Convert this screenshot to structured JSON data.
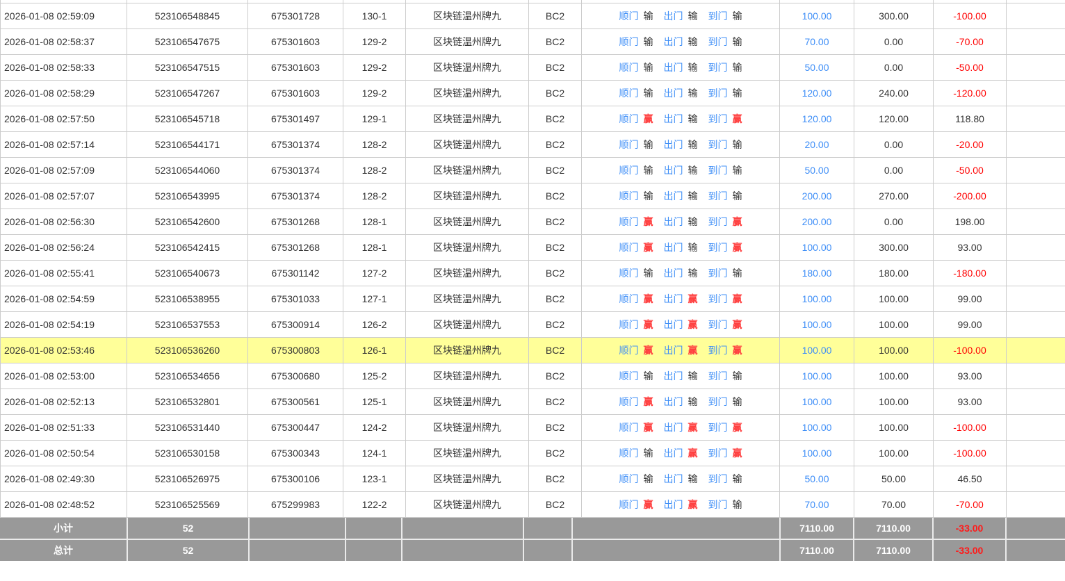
{
  "table": {
    "gate_labels": [
      "顺门",
      "出门",
      "到门"
    ],
    "win_char": "赢",
    "lose_char": "输",
    "colors": {
      "link_blue": "#3e8ef7",
      "win_red": "#ff4040",
      "loss_red": "#ff0000",
      "highlight_yellow": "#ffff99",
      "footer_gray": "#999999",
      "border_gray": "#cccccc"
    },
    "rows": [
      {
        "time": "2026-01-08 02:59:09",
        "bet_id": "523106548845",
        "draw_id": "675301728",
        "round": "130-1",
        "game": "区块链温州牌九",
        "table_code": "BC2",
        "outcomes": [
          "输",
          "输",
          "输"
        ],
        "bet_amount": "100.00",
        "valid_amount": "300.00",
        "win_loss": "-100.00",
        "highlighted": false
      },
      {
        "time": "2026-01-08 02:58:37",
        "bet_id": "523106547675",
        "draw_id": "675301603",
        "round": "129-2",
        "game": "区块链温州牌九",
        "table_code": "BC2",
        "outcomes": [
          "输",
          "输",
          "输"
        ],
        "bet_amount": "70.00",
        "valid_amount": "0.00",
        "win_loss": "-70.00",
        "highlighted": false
      },
      {
        "time": "2026-01-08 02:58:33",
        "bet_id": "523106547515",
        "draw_id": "675301603",
        "round": "129-2",
        "game": "区块链温州牌九",
        "table_code": "BC2",
        "outcomes": [
          "输",
          "输",
          "输"
        ],
        "bet_amount": "50.00",
        "valid_amount": "0.00",
        "win_loss": "-50.00",
        "highlighted": false
      },
      {
        "time": "2026-01-08 02:58:29",
        "bet_id": "523106547267",
        "draw_id": "675301603",
        "round": "129-2",
        "game": "区块链温州牌九",
        "table_code": "BC2",
        "outcomes": [
          "输",
          "输",
          "输"
        ],
        "bet_amount": "120.00",
        "valid_amount": "240.00",
        "win_loss": "-120.00",
        "highlighted": false
      },
      {
        "time": "2026-01-08 02:57:50",
        "bet_id": "523106545718",
        "draw_id": "675301497",
        "round": "129-1",
        "game": "区块链温州牌九",
        "table_code": "BC2",
        "outcomes": [
          "赢",
          "输",
          "赢"
        ],
        "bet_amount": "120.00",
        "valid_amount": "120.00",
        "win_loss": "118.80",
        "highlighted": false
      },
      {
        "time": "2026-01-08 02:57:14",
        "bet_id": "523106544171",
        "draw_id": "675301374",
        "round": "128-2",
        "game": "区块链温州牌九",
        "table_code": "BC2",
        "outcomes": [
          "输",
          "输",
          "输"
        ],
        "bet_amount": "20.00",
        "valid_amount": "0.00",
        "win_loss": "-20.00",
        "highlighted": false
      },
      {
        "time": "2026-01-08 02:57:09",
        "bet_id": "523106544060",
        "draw_id": "675301374",
        "round": "128-2",
        "game": "区块链温州牌九",
        "table_code": "BC2",
        "outcomes": [
          "输",
          "输",
          "输"
        ],
        "bet_amount": "50.00",
        "valid_amount": "0.00",
        "win_loss": "-50.00",
        "highlighted": false
      },
      {
        "time": "2026-01-08 02:57:07",
        "bet_id": "523106543995",
        "draw_id": "675301374",
        "round": "128-2",
        "game": "区块链温州牌九",
        "table_code": "BC2",
        "outcomes": [
          "输",
          "输",
          "输"
        ],
        "bet_amount": "200.00",
        "valid_amount": "270.00",
        "win_loss": "-200.00",
        "highlighted": false
      },
      {
        "time": "2026-01-08 02:56:30",
        "bet_id": "523106542600",
        "draw_id": "675301268",
        "round": "128-1",
        "game": "区块链温州牌九",
        "table_code": "BC2",
        "outcomes": [
          "赢",
          "输",
          "赢"
        ],
        "bet_amount": "200.00",
        "valid_amount": "0.00",
        "win_loss": "198.00",
        "highlighted": false
      },
      {
        "time": "2026-01-08 02:56:24",
        "bet_id": "523106542415",
        "draw_id": "675301268",
        "round": "128-1",
        "game": "区块链温州牌九",
        "table_code": "BC2",
        "outcomes": [
          "赢",
          "输",
          "赢"
        ],
        "bet_amount": "100.00",
        "valid_amount": "300.00",
        "win_loss": "93.00",
        "highlighted": false
      },
      {
        "time": "2026-01-08 02:55:41",
        "bet_id": "523106540673",
        "draw_id": "675301142",
        "round": "127-2",
        "game": "区块链温州牌九",
        "table_code": "BC2",
        "outcomes": [
          "输",
          "输",
          "输"
        ],
        "bet_amount": "180.00",
        "valid_amount": "180.00",
        "win_loss": "-180.00",
        "highlighted": false
      },
      {
        "time": "2026-01-08 02:54:59",
        "bet_id": "523106538955",
        "draw_id": "675301033",
        "round": "127-1",
        "game": "区块链温州牌九",
        "table_code": "BC2",
        "outcomes": [
          "赢",
          "赢",
          "赢"
        ],
        "bet_amount": "100.00",
        "valid_amount": "100.00",
        "win_loss": "99.00",
        "highlighted": false
      },
      {
        "time": "2026-01-08 02:54:19",
        "bet_id": "523106537553",
        "draw_id": "675300914",
        "round": "126-2",
        "game": "区块链温州牌九",
        "table_code": "BC2",
        "outcomes": [
          "赢",
          "赢",
          "赢"
        ],
        "bet_amount": "100.00",
        "valid_amount": "100.00",
        "win_loss": "99.00",
        "highlighted": false
      },
      {
        "time": "2026-01-08 02:53:46",
        "bet_id": "523106536260",
        "draw_id": "675300803",
        "round": "126-1",
        "game": "区块链温州牌九",
        "table_code": "BC2",
        "outcomes": [
          "赢",
          "赢",
          "赢"
        ],
        "bet_amount": "100.00",
        "valid_amount": "100.00",
        "win_loss": "-100.00",
        "highlighted": true
      },
      {
        "time": "2026-01-08 02:53:00",
        "bet_id": "523106534656",
        "draw_id": "675300680",
        "round": "125-2",
        "game": "区块链温州牌九",
        "table_code": "BC2",
        "outcomes": [
          "输",
          "输",
          "输"
        ],
        "bet_amount": "100.00",
        "valid_amount": "100.00",
        "win_loss": "93.00",
        "highlighted": false
      },
      {
        "time": "2026-01-08 02:52:13",
        "bet_id": "523106532801",
        "draw_id": "675300561",
        "round": "125-1",
        "game": "区块链温州牌九",
        "table_code": "BC2",
        "outcomes": [
          "赢",
          "输",
          "输"
        ],
        "bet_amount": "100.00",
        "valid_amount": "100.00",
        "win_loss": "93.00",
        "highlighted": false
      },
      {
        "time": "2026-01-08 02:51:33",
        "bet_id": "523106531440",
        "draw_id": "675300447",
        "round": "124-2",
        "game": "区块链温州牌九",
        "table_code": "BC2",
        "outcomes": [
          "赢",
          "赢",
          "赢"
        ],
        "bet_amount": "100.00",
        "valid_amount": "100.00",
        "win_loss": "-100.00",
        "highlighted": false
      },
      {
        "time": "2026-01-08 02:50:54",
        "bet_id": "523106530158",
        "draw_id": "675300343",
        "round": "124-1",
        "game": "区块链温州牌九",
        "table_code": "BC2",
        "outcomes": [
          "输",
          "赢",
          "赢"
        ],
        "bet_amount": "100.00",
        "valid_amount": "100.00",
        "win_loss": "-100.00",
        "highlighted": false
      },
      {
        "time": "2026-01-08 02:49:30",
        "bet_id": "523106526975",
        "draw_id": "675300106",
        "round": "123-1",
        "game": "区块链温州牌九",
        "table_code": "BC2",
        "outcomes": [
          "输",
          "输",
          "输"
        ],
        "bet_amount": "50.00",
        "valid_amount": "50.00",
        "win_loss": "46.50",
        "highlighted": false
      },
      {
        "time": "2026-01-08 02:48:52",
        "bet_id": "523106525569",
        "draw_id": "675299983",
        "round": "122-2",
        "game": "区块链温州牌九",
        "table_code": "BC2",
        "outcomes": [
          "赢",
          "赢",
          "输"
        ],
        "bet_amount": "70.00",
        "valid_amount": "70.00",
        "win_loss": "-70.00",
        "highlighted": false
      }
    ],
    "footer": {
      "subtotal": {
        "label": "小计",
        "count": "52",
        "stake_total": "7110.00",
        "valid_total": "7110.00",
        "win_loss_total": "-33.00"
      },
      "total": {
        "label": "总计",
        "count": "52",
        "stake_total": "7110.00",
        "valid_total": "7110.00",
        "win_loss_total": "-33.00"
      }
    }
  }
}
